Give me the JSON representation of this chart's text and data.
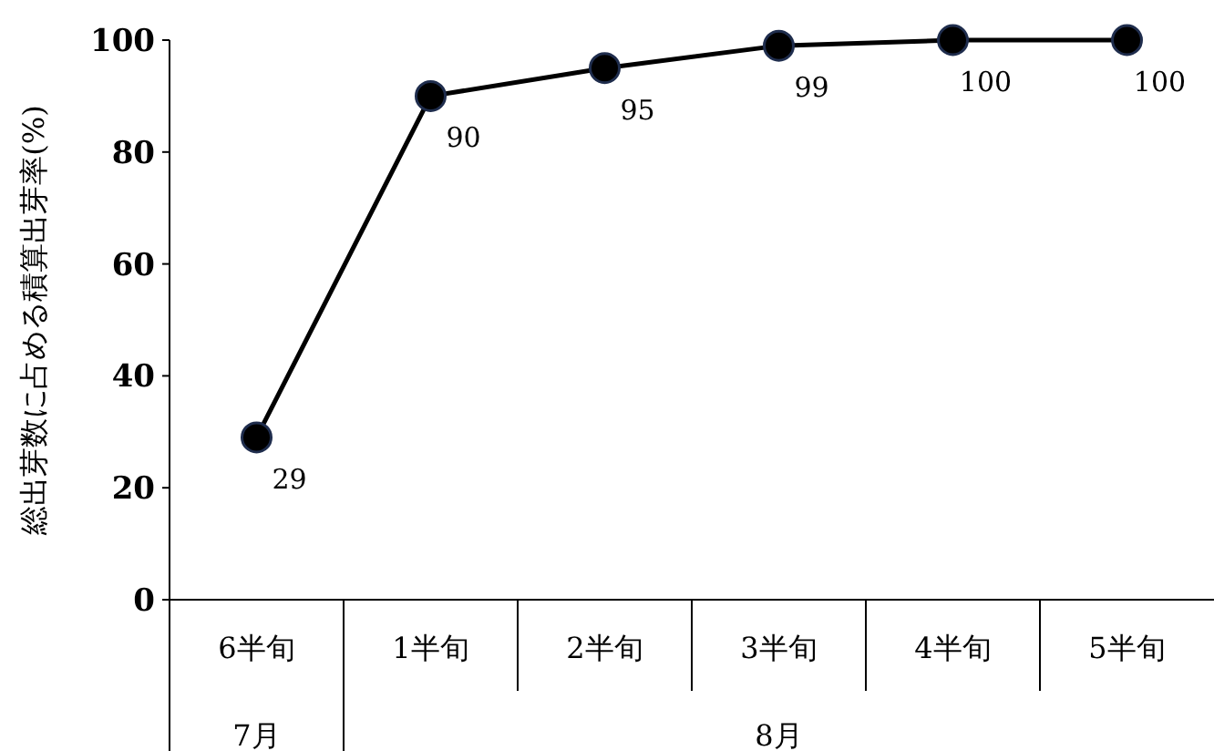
{
  "chart_data": {
    "type": "line",
    "ylabel": "総出芽数に占める積算出芽率(%)",
    "categories": [
      "6半旬",
      "1半旬",
      "2半旬",
      "3半旬",
      "4半旬",
      "5半旬"
    ],
    "series": [
      {
        "color": "#000000",
        "values": [
          29,
          90,
          95,
          99,
          100,
          100
        ]
      }
    ],
    "annotations": [
      "7月",
      "8月"
    ],
    "ylim": [
      0,
      100
    ],
    "yticks": [
      0,
      20,
      40,
      60,
      80,
      100
    ],
    "marker": "circle",
    "line_style": "solid",
    "data_labels": true
  }
}
